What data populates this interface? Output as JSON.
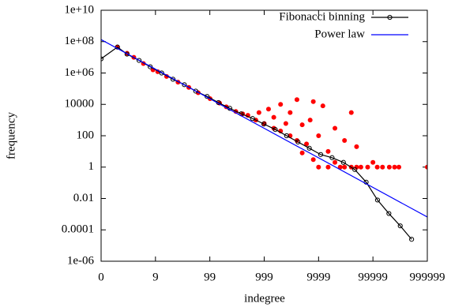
{
  "chart_data": {
    "type": "line",
    "xlabel": "indegree",
    "ylabel": "frequency",
    "xscale": "log(x+1)",
    "yscale": "log",
    "xlim": [
      0,
      999999
    ],
    "ylim": [
      1e-06,
      10000000000.0
    ],
    "xticks": [
      0,
      9,
      99,
      999,
      9999,
      99999,
      999999
    ],
    "yticks": [
      {
        "value": 1e-06,
        "label": "1e-06"
      },
      0.0001,
      0.01,
      1,
      100,
      10000,
      {
        "value": 1000000.0,
        "label": "1e+06"
      },
      {
        "value": 100000000.0,
        "label": "1e+08"
      },
      {
        "value": 10000000000.0,
        "label": "1e+10"
      }
    ],
    "legend": "upper right",
    "series": [
      {
        "color": "#ff0000",
        "style": "points",
        "x": [
          1,
          2,
          3,
          5,
          8,
          10,
          15,
          25,
          40,
          60,
          100,
          150,
          200,
          300,
          400,
          500,
          700,
          800,
          1000,
          1200,
          1500,
          1500,
          2000,
          2000,
          2500,
          3000,
          3000,
          4000,
          4000,
          5000,
          5000,
          6000,
          7000,
          8000,
          8000,
          10000,
          10000,
          12000,
          15000,
          15000,
          20000,
          20000,
          25000,
          30000,
          30000,
          40000,
          40000,
          50000,
          50000,
          60000,
          80000,
          100000,
          120000,
          150000,
          200000,
          250000,
          300000,
          999999
        ],
        "values": [
          45000000,
          18000000,
          10000000,
          4000000,
          1600000,
          1200000,
          600000,
          260000,
          120000,
          55000,
          23000,
          12000,
          7000,
          3500,
          2500,
          2000,
          1000,
          3000,
          600,
          5000,
          300,
          1500,
          10000,
          200,
          600,
          100,
          3000,
          50,
          20000,
          500,
          8,
          30,
          1000,
          3,
          15000,
          100,
          1,
          8000,
          10,
          1,
          300,
          2,
          1,
          50,
          1,
          3000,
          1,
          20,
          1,
          1,
          1,
          2,
          1,
          1,
          1,
          1,
          1,
          1
        ]
      },
      {
        "name": "Fibonacci binning",
        "color": "#000000",
        "marker": "circle",
        "x": [
          0,
          1,
          2,
          4,
          7,
          12,
          20,
          33,
          54,
          88,
          143,
          232,
          376,
          609,
          986,
          1596,
          2583,
          4180,
          6764,
          10945,
          17710,
          28656,
          46367,
          75024,
          121392,
          196417,
          317810,
          514228
        ],
        "values": [
          8000000,
          45000000,
          16000000,
          6300000,
          2500000,
          1000000,
          400000,
          180000,
          70000,
          32000,
          13000,
          5600,
          2500,
          1260,
          560,
          250,
          100,
          40,
          16,
          6.3,
          4,
          2,
          0.7,
          0.11,
          0.008,
          0.0011,
          0.00018,
          2.5e-05
        ]
      },
      {
        "name": "Power law",
        "color": "#0000ff",
        "x": [
          0,
          999999
        ],
        "values": [
          135000000,
          0.00066
        ]
      }
    ]
  }
}
